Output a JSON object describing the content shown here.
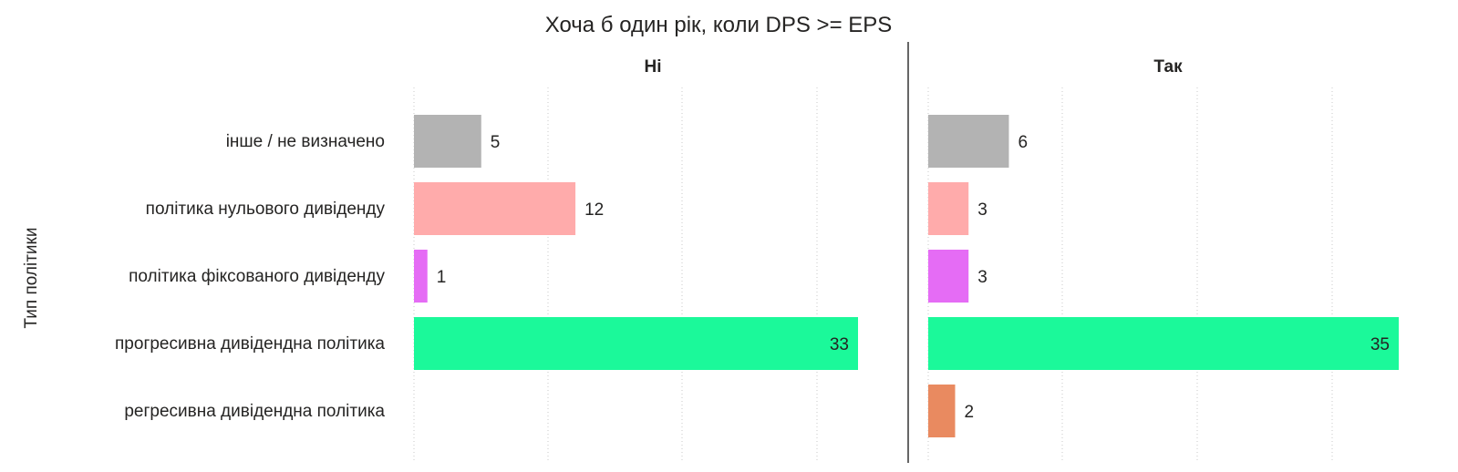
{
  "chart_data": {
    "type": "bar",
    "orientation": "horizontal",
    "title": "Хоча б один рік, коли DPS >= EPS",
    "ylabel": "Тип політики",
    "xlabel": "",
    "categories": [
      "інше / не визначено",
      "політика нульового дивіденду",
      "політика фіксованого дивіденду",
      "прогресивна дивідендна політика",
      "регресивна дивідендна політика"
    ],
    "category_colors": [
      "#b3b3b3",
      "#ffabab",
      "#e56cf5",
      "#1bf99a",
      "#e98a60"
    ],
    "grid": true,
    "panels": [
      {
        "name": "Ні",
        "values": [
          5,
          12,
          1,
          33,
          null
        ],
        "xlim": [
          0,
          33
        ]
      },
      {
        "name": "Так",
        "values": [
          6,
          3,
          3,
          35,
          2
        ],
        "xlim": [
          0,
          35
        ]
      }
    ]
  }
}
